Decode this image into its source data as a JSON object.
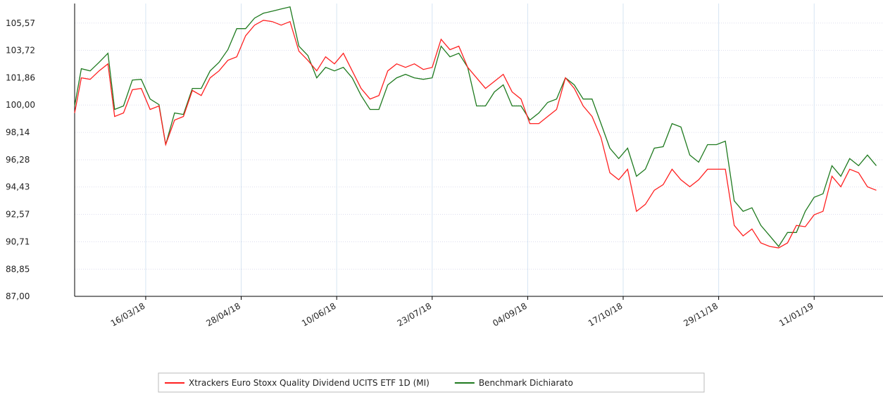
{
  "chart_data": {
    "type": "line",
    "x": [
      "12/02/18",
      "15/02/18",
      "19/02/18",
      "23/02/18",
      "27/02/18",
      "02/03/18",
      "06/03/18",
      "10/03/18",
      "14/03/18",
      "18/03/18",
      "22/03/18",
      "25/03/18",
      "29/03/18",
      "02/04/18",
      "06/04/18",
      "10/04/18",
      "14/04/18",
      "18/04/18",
      "22/04/18",
      "26/04/18",
      "30/04/18",
      "04/05/18",
      "08/05/18",
      "12/05/18",
      "16/05/18",
      "20/05/18",
      "24/05/18",
      "28/05/18",
      "01/06/18",
      "05/06/18",
      "09/06/18",
      "13/06/18",
      "17/06/18",
      "21/06/18",
      "25/06/18",
      "29/06/18",
      "03/07/18",
      "07/07/18",
      "11/07/18",
      "15/07/18",
      "19/07/18",
      "23/07/18",
      "27/07/18",
      "31/07/18",
      "04/08/18",
      "08/08/18",
      "12/08/18",
      "16/08/18",
      "20/08/18",
      "24/08/18",
      "28/08/18",
      "01/09/18",
      "05/09/18",
      "09/09/18",
      "13/09/18",
      "17/09/18",
      "21/09/18",
      "25/09/18",
      "29/09/18",
      "03/10/18",
      "07/10/18",
      "11/10/18",
      "15/10/18",
      "19/10/18",
      "23/10/18",
      "27/10/18",
      "31/10/18",
      "04/11/18",
      "08/11/18",
      "12/11/18",
      "16/11/18",
      "20/11/18",
      "24/11/18",
      "28/11/18",
      "02/12/18",
      "06/12/18",
      "10/12/18",
      "14/12/18",
      "18/12/18",
      "22/12/18",
      "26/12/18",
      "30/12/18",
      "03/01/19",
      "07/01/19",
      "11/01/19",
      "15/01/19",
      "19/01/19",
      "23/01/19",
      "27/01/19",
      "31/01/19",
      "04/02/19",
      "08/02/19"
    ],
    "series": [
      {
        "name": "Xtrackers Euro Stoxx Quality Dividend UCITS ETF 1D (MI)",
        "color": "#ff2020",
        "values": [
          99.46,
          101.85,
          101.75,
          102.32,
          102.8,
          99.22,
          99.46,
          101.04,
          101.13,
          99.7,
          99.94,
          97.31,
          98.98,
          99.22,
          100.99,
          100.65,
          101.85,
          102.32,
          103.04,
          103.28,
          104.71,
          105.43,
          105.76,
          105.67,
          105.43,
          105.67,
          103.66,
          103.04,
          102.32,
          103.28,
          102.8,
          103.52,
          102.32,
          101.13,
          100.41,
          100.65,
          102.32,
          102.8,
          102.56,
          102.8,
          102.42,
          102.56,
          104.47,
          103.76,
          104.0,
          102.56,
          101.85,
          101.13,
          101.61,
          102.09,
          100.89,
          100.41,
          98.74,
          98.74,
          99.22,
          99.7,
          101.85,
          101.13,
          99.94,
          99.22,
          97.79,
          95.4,
          94.92,
          95.64,
          92.78,
          93.25,
          94.21,
          94.59,
          95.64,
          94.92,
          94.45,
          94.92,
          95.64,
          95.64,
          95.64,
          91.82,
          91.11,
          91.58,
          90.63,
          90.39,
          90.29,
          90.63,
          91.82,
          91.73,
          92.54,
          92.78,
          95.16,
          94.45,
          95.64,
          95.4,
          94.45,
          94.21
        ]
      },
      {
        "name": "Benchmark Dichiarato",
        "color": "#1f7a1f",
        "values": [
          99.94,
          102.47,
          102.32,
          102.9,
          103.52,
          99.7,
          99.94,
          101.7,
          101.75,
          100.41,
          100.03,
          97.31,
          99.46,
          99.36,
          101.13,
          101.13,
          102.32,
          102.9,
          103.76,
          105.19,
          105.19,
          105.91,
          106.24,
          106.38,
          106.53,
          106.67,
          104.0,
          103.37,
          101.85,
          102.56,
          102.32,
          102.56,
          101.85,
          100.65,
          99.7,
          99.7,
          101.37,
          101.85,
          102.09,
          101.85,
          101.75,
          101.85,
          104.0,
          103.28,
          103.52,
          102.56,
          99.94,
          99.94,
          100.89,
          101.37,
          99.94,
          99.94,
          98.98,
          99.46,
          100.18,
          100.41,
          101.85,
          101.37,
          100.41,
          100.41,
          98.74,
          97.07,
          96.36,
          97.07,
          95.16,
          95.64,
          97.07,
          97.17,
          98.74,
          98.51,
          96.6,
          96.12,
          97.31,
          97.31,
          97.55,
          93.49,
          92.78,
          93.02,
          91.82,
          91.11,
          90.39,
          91.34,
          91.34,
          92.78,
          93.73,
          93.97,
          95.88,
          95.16,
          96.36,
          95.88,
          96.6,
          95.88
        ]
      }
    ],
    "xlim": [
      "12/02/18",
      "11/02/19"
    ],
    "xticks": [
      "16/03/18",
      "28/04/18",
      "10/06/18",
      "23/07/18",
      "04/09/18",
      "17/10/18",
      "29/11/18",
      "11/01/19"
    ],
    "ylim": [
      87,
      106.9
    ],
    "yticks": [
      {
        "value": 87,
        "label": "87,00"
      },
      {
        "value": 88.85,
        "label": "88,85"
      },
      {
        "value": 90.71,
        "label": "90,71"
      },
      {
        "value": 92.57,
        "label": "92,57"
      },
      {
        "value": 94.43,
        "label": "94,43"
      },
      {
        "value": 96.28,
        "label": "96,28"
      },
      {
        "value": 98.14,
        "label": "98,14"
      },
      {
        "value": 100,
        "label": "100,00"
      },
      {
        "value": 101.86,
        "label": "101,86"
      },
      {
        "value": 103.72,
        "label": "103,72"
      },
      {
        "value": 105.57,
        "label": "105,57"
      }
    ],
    "grid": true
  }
}
